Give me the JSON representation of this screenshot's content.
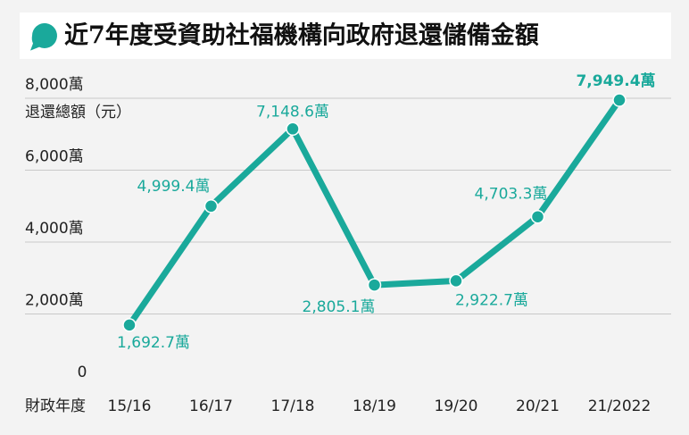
{
  "chart_data": {
    "type": "line",
    "title": "近7年度受資助社福機構向政府退還儲備金額",
    "y_label": "退還總額（元）",
    "x_label": "財政年度",
    "categories": [
      "15/16",
      "16/17",
      "17/18",
      "18/19",
      "19/20",
      "20/21",
      "21/2022"
    ],
    "series": [
      {
        "name": "退還總額",
        "color": "#1aa99b",
        "values": [
          1692.7,
          4999.4,
          7148.6,
          2805.1,
          2922.7,
          4703.3,
          7949.4
        ],
        "value_labels": [
          "1,692.7萬",
          "4,999.4萬",
          "7,148.6萬",
          "2,805.1萬",
          "2,922.7萬",
          "4,703.3萬",
          "7,949.4萬"
        ]
      }
    ],
    "ylim": [
      0,
      8000
    ],
    "yticks": [
      0,
      {
        "value": 2000,
        "label": "2,000萬"
      },
      {
        "value": 4000,
        "label": "4,000萬"
      },
      {
        "value": 6000,
        "label": "6,000萬"
      },
      {
        "value": 8000,
        "label": "8,000萬"
      }
    ],
    "grid": true
  }
}
